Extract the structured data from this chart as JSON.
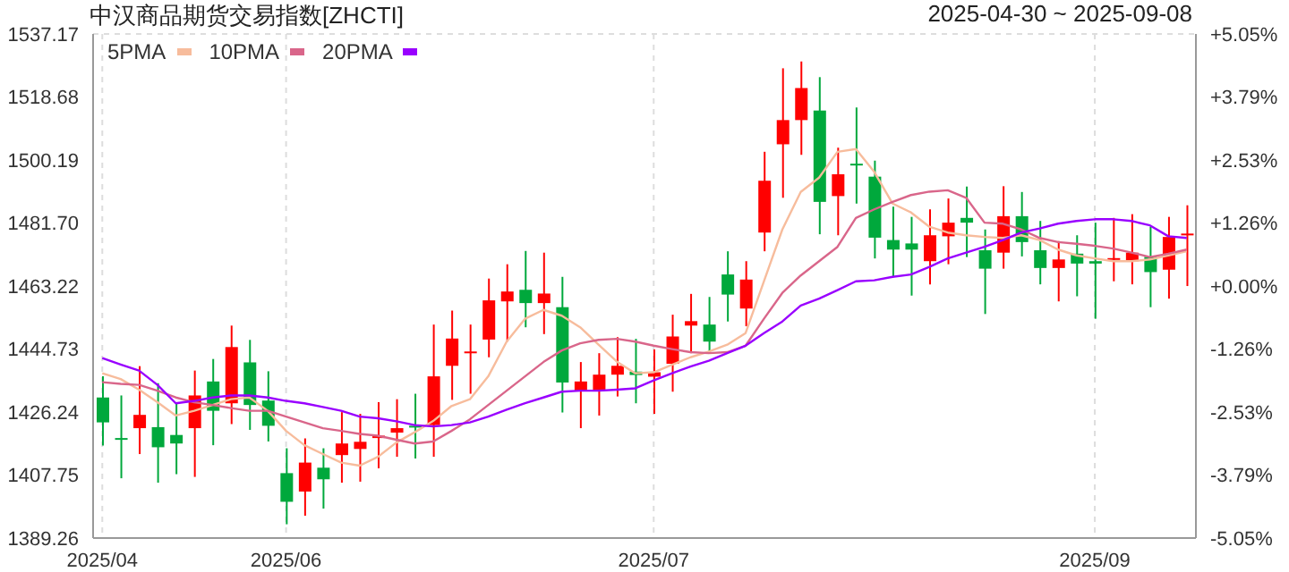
{
  "chart_data": {
    "type": "candlestick",
    "title": "中汉商品期货交易指数[ZHCTI]",
    "subtitle": "2025-04-30 ~ 2025-09-08",
    "categories": [
      "2025/04",
      null,
      null,
      null,
      null,
      null,
      null,
      null,
      null,
      null,
      "2025/06",
      null,
      null,
      null,
      null,
      null,
      null,
      null,
      null,
      null,
      null,
      null,
      null,
      null,
      null,
      null,
      null,
      null,
      null,
      null,
      "2025/07",
      null,
      null,
      null,
      null,
      null,
      null,
      null,
      null,
      null,
      null,
      null,
      null,
      null,
      null,
      null,
      null,
      null,
      null,
      null,
      null,
      null,
      null,
      null,
      "2025/09",
      null,
      null,
      null,
      null,
      null
    ],
    "ohlc": [
      [
        1430.5,
        1436.7,
        1416.4,
        1423.2
      ],
      [
        1418.6,
        1431.1,
        1406.8,
        1418.4
      ],
      [
        1421.5,
        1439.7,
        1413.9,
        1425.4
      ],
      [
        1421.8,
        1434.7,
        1405.5,
        1415.9
      ],
      [
        1419.5,
        1428.8,
        1408.0,
        1417.0
      ],
      [
        1421.5,
        1438.4,
        1407.2,
        1431.1
      ],
      [
        1435.2,
        1441.8,
        1416.5,
        1426.6
      ],
      [
        1428.8,
        1451.6,
        1422.7,
        1445.3
      ],
      [
        1440.8,
        1447.4,
        1421.0,
        1428.3
      ],
      [
        1429.6,
        1438.2,
        1417.6,
        1422.2
      ],
      [
        1408.3,
        1415.6,
        1393.3,
        1399.9
      ],
      [
        1402.9,
        1418.5,
        1395.8,
        1411.4
      ],
      [
        1409.9,
        1415.6,
        1397.9,
        1406.5
      ],
      [
        1413.6,
        1426.2,
        1405.5,
        1417.0
      ],
      [
        1415.4,
        1425.7,
        1405.8,
        1417.5
      ],
      [
        1418.6,
        1429.1,
        1409.7,
        1419.3
      ],
      [
        1420.2,
        1430.0,
        1413.1,
        1421.5
      ],
      [
        1422.2,
        1431.6,
        1412.6,
        1421.8
      ],
      [
        1422.4,
        1451.9,
        1413.1,
        1436.7
      ],
      [
        1439.8,
        1456.0,
        1429.8,
        1447.8
      ],
      [
        1443.7,
        1451.9,
        1431.6,
        1444.0
      ],
      [
        1447.5,
        1465.4,
        1442.3,
        1459.0
      ],
      [
        1458.7,
        1469.6,
        1446.9,
        1461.6
      ],
      [
        1462.1,
        1473.5,
        1451.1,
        1458.2
      ],
      [
        1458.2,
        1473.0,
        1449.1,
        1461.0
      ],
      [
        1457.0,
        1465.9,
        1426.1,
        1434.9
      ],
      [
        1432.5,
        1440.9,
        1421.5,
        1435.2
      ],
      [
        1432.8,
        1443.5,
        1425.2,
        1437.2
      ],
      [
        1437.2,
        1448.2,
        1430.8,
        1439.8
      ],
      [
        1438.1,
        1447.7,
        1428.8,
        1437.1
      ],
      [
        1436.6,
        1444.6,
        1425.7,
        1437.9
      ],
      [
        1440.4,
        1454.8,
        1432.2,
        1448.4
      ],
      [
        1451.6,
        1460.9,
        1443.5,
        1452.9
      ],
      [
        1451.9,
        1460.0,
        1443.5,
        1446.9
      ],
      [
        1466.6,
        1473.4,
        1452.8,
        1460.7
      ],
      [
        1456.6,
        1470.5,
        1451.4,
        1465.1
      ],
      [
        1478.9,
        1502.6,
        1473.4,
        1494.1
      ],
      [
        1504.8,
        1527.1,
        1489.1,
        1511.9
      ],
      [
        1511.9,
        1529.1,
        1501.7,
        1521.3
      ],
      [
        1514.7,
        1524.5,
        1478.4,
        1487.9
      ],
      [
        1489.6,
        1503.8,
        1478.1,
        1496.0
      ],
      [
        1499.1,
        1515.6,
        1487.4,
        1498.9
      ],
      [
        1495.3,
        1500.0,
        1471.3,
        1477.4
      ],
      [
        1476.7,
        1486.5,
        1465.9,
        1473.9
      ],
      [
        1475.7,
        1483.5,
        1460.4,
        1473.9
      ],
      [
        1470.5,
        1485.7,
        1463.7,
        1478.1
      ],
      [
        1477.8,
        1488.9,
        1469.6,
        1481.8
      ],
      [
        1483.2,
        1492.4,
        1471.7,
        1481.8
      ],
      [
        1473.7,
        1479.8,
        1455.0,
        1468.3
      ],
      [
        1473.0,
        1492.5,
        1468.3,
        1483.7
      ],
      [
        1483.7,
        1490.8,
        1471.9,
        1476.1
      ],
      [
        1473.7,
        1482.3,
        1463.7,
        1468.5
      ],
      [
        1468.5,
        1476.4,
        1458.7,
        1471.0
      ],
      [
        1472.7,
        1478.1,
        1460.2,
        1469.8
      ],
      [
        1470.5,
        1481.8,
        1453.6,
        1469.8
      ],
      [
        1471.2,
        1483.2,
        1464.6,
        1471.4
      ],
      [
        1470.5,
        1484.3,
        1463.7,
        1473.0
      ],
      [
        1471.8,
        1480.6,
        1457.0,
        1467.3
      ],
      [
        1468.0,
        1483.5,
        1459.5,
        1477.6
      ],
      [
        1478.2,
        1486.9,
        1463.2,
        1478.6
      ]
    ],
    "colors": [
      "#00a83c",
      "#00a83c",
      "#ff0000",
      "#00a83c",
      "#00a83c",
      "#ff0000",
      "#00a83c",
      "#ff0000",
      "#00a83c",
      "#00a83c",
      "#00a83c",
      "#ff0000",
      "#00a83c",
      "#ff0000",
      "#ff0000",
      "#ff0000",
      "#ff0000",
      "#00a83c",
      "#ff0000",
      "#ff0000",
      "#ff0000",
      "#ff0000",
      "#ff0000",
      "#00a83c",
      "#ff0000",
      "#00a83c",
      "#ff0000",
      "#ff0000",
      "#ff0000",
      "#00a83c",
      "#ff0000",
      "#ff0000",
      "#ff0000",
      "#00a83c",
      "#00a83c",
      "#ff0000",
      "#ff0000",
      "#ff0000",
      "#ff0000",
      "#00a83c",
      "#ff0000",
      "#00a83c",
      "#00a83c",
      "#00a83c",
      "#00a83c",
      "#ff0000",
      "#ff0000",
      "#00a83c",
      "#00a83c",
      "#ff0000",
      "#00a83c",
      "#00a83c",
      "#ff0000",
      "#00a83c",
      "#00a83c",
      "#ff0000",
      "#ff0000",
      "#00a83c",
      "#ff0000",
      "#ff0000"
    ],
    "series": [
      {
        "name": "5PMA",
        "type": "line",
        "color": "#f7bc9c",
        "values": [
          1437.6,
          1435.9,
          1432.8,
          1429.1,
          1425.2,
          1426.6,
          1428.3,
          1430.0,
          1430.5,
          1426.6,
          1420.7,
          1416.5,
          1413.9,
          1411.4,
          1410.5,
          1413.1,
          1417.3,
          1420.3,
          1423.6,
          1428.0,
          1430.0,
          1436.7,
          1446.9,
          1453.6,
          1456.2,
          1454.5,
          1451.1,
          1446.0,
          1441.0,
          1437.6,
          1437.9,
          1440.1,
          1442.3,
          1444.0,
          1446.0,
          1449.4,
          1464.6,
          1479.8,
          1490.8,
          1495.0,
          1502.6,
          1503.4,
          1496.7,
          1487.4,
          1484.8,
          1480.6,
          1478.9,
          1478.1,
          1477.6,
          1477.3,
          1478.1,
          1476.7,
          1473.9,
          1472.2,
          1471.3,
          1470.5,
          1470.5,
          1471.0,
          1472.2,
          1473.4
        ]
      },
      {
        "name": "10PMA",
        "type": "line",
        "color": "#d9668a",
        "values": [
          1435.0,
          1434.5,
          1434.2,
          1432.5,
          1430.5,
          1429.1,
          1428.3,
          1427.4,
          1426.6,
          1426.6,
          1424.9,
          1423.2,
          1421.5,
          1420.7,
          1419.8,
          1419.3,
          1418.1,
          1417.0,
          1417.6,
          1420.7,
          1424.1,
          1428.3,
          1432.5,
          1436.7,
          1440.9,
          1444.3,
          1446.4,
          1447.4,
          1447.7,
          1446.9,
          1445.7,
          1444.7,
          1443.8,
          1443.5,
          1443.8,
          1445.7,
          1453.6,
          1461.2,
          1466.3,
          1470.5,
          1474.7,
          1483.2,
          1485.7,
          1487.9,
          1489.9,
          1490.9,
          1491.3,
          1489.1,
          1481.8,
          1481.5,
          1479.8,
          1477.3,
          1476.1,
          1475.6,
          1475.0,
          1474.2,
          1473.0,
          1471.7,
          1472.7,
          1473.9
        ]
      },
      {
        "name": "20PMA",
        "type": "line",
        "color": "#9900ff",
        "values": [
          1442.1,
          1440.2,
          1438.4,
          1434.2,
          1428.8,
          1429.5,
          1430.5,
          1431.1,
          1431.1,
          1430.5,
          1429.5,
          1428.8,
          1427.7,
          1426.6,
          1424.9,
          1424.4,
          1423.5,
          1422.4,
          1422.0,
          1422.4,
          1423.2,
          1424.9,
          1426.9,
          1428.8,
          1430.5,
          1432.2,
          1432.5,
          1432.5,
          1432.8,
          1433.2,
          1435.5,
          1437.6,
          1439.6,
          1441.3,
          1443.5,
          1445.7,
          1449.4,
          1452.8,
          1457.5,
          1459.5,
          1462.0,
          1464.6,
          1464.9,
          1465.9,
          1466.6,
          1468.8,
          1471.3,
          1473.0,
          1474.7,
          1476.7,
          1478.9,
          1480.1,
          1481.5,
          1482.3,
          1482.8,
          1482.8,
          1482.3,
          1481.0,
          1477.8,
          1477.3
        ]
      }
    ],
    "ylim": [
      1389.26,
      1537.17
    ],
    "yticks": [
      1389.26,
      1407.75,
      1426.24,
      1444.73,
      1463.22,
      {
        "value": 1481.7,
        "label": "1481.70"
      },
      1500.19,
      1518.68,
      1537.17
    ],
    "y2lim": [
      -5.05,
      5.05
    ],
    "y2ticks": [
      {
        "value": -5.05,
        "label": "-5.05%"
      },
      {
        "value": -3.79,
        "label": "-3.79%"
      },
      {
        "value": -2.53,
        "label": "-2.53%"
      },
      {
        "value": -1.26,
        "label": "-1.26%"
      },
      {
        "value": 0,
        "label": "+0.00%"
      },
      {
        "value": 1.26,
        "label": "+1.26%"
      },
      {
        "value": 2.53,
        "label": "+2.53%"
      },
      {
        "value": 3.79,
        "label": "+3.79%"
      },
      {
        "value": 5.05,
        "label": "+5.05%"
      }
    ],
    "grid": true,
    "legend": "top left",
    "marker": "none",
    "line_style": "solid"
  }
}
